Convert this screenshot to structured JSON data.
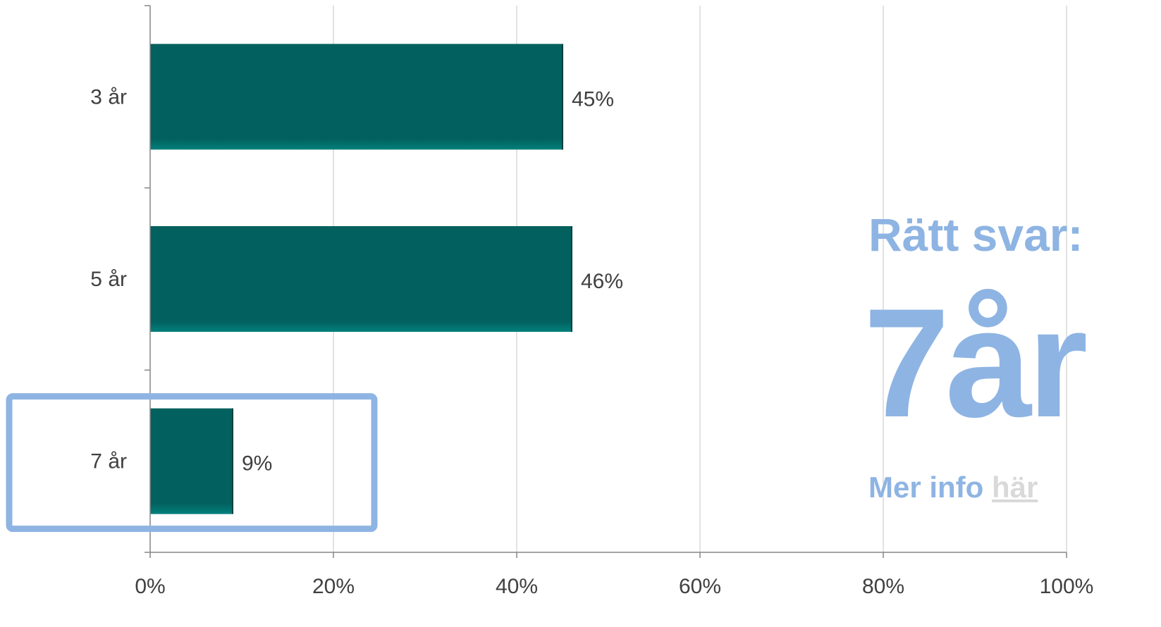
{
  "chart_data": {
    "type": "bar",
    "orientation": "horizontal",
    "categories": [
      "3 år",
      "5 år",
      "7 år"
    ],
    "values": [
      45,
      46,
      9
    ],
    "data_labels": [
      "45%",
      "46%",
      "9%"
    ],
    "xlim": [
      0,
      100
    ],
    "x_ticks": [
      "0%",
      "20%",
      "40%",
      "60%",
      "80%",
      "100%"
    ],
    "grid": "vertical",
    "highlighted_category": "7 år",
    "colors": {
      "bar": "#02615e",
      "highlight": "#8eb4e3",
      "grid": "#d9d9d9",
      "axis": "#868686",
      "label": "#404040"
    }
  },
  "answer": {
    "title": "Rätt svar:",
    "value": "7år",
    "more_info_prefix": "Mer info",
    "more_info_link": "här"
  }
}
